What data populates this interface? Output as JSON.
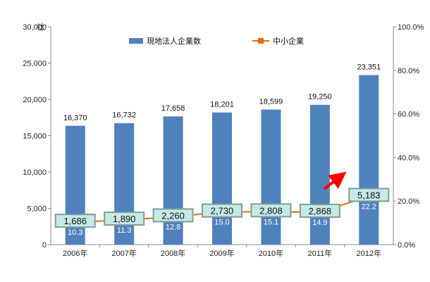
{
  "chart_data": {
    "type": "bar",
    "categories": [
      "2006年",
      "2007年",
      "2008年",
      "2009年",
      "2010年",
      "2011年",
      "2012年"
    ],
    "series": [
      {
        "name": "現地法人企業数",
        "type": "bar",
        "axis": "left",
        "values": [
          16370,
          16732,
          17658,
          18201,
          18599,
          19250,
          23351
        ],
        "labels": [
          "16,370",
          "16,732",
          "17,658",
          "18,201",
          "18,599",
          "19,250",
          "23,351"
        ],
        "color": "#4F81BD"
      },
      {
        "name": "中小企業",
        "type": "line",
        "axis": "right",
        "values": [
          10.3,
          11.3,
          12.8,
          15.0,
          15.1,
          14.9,
          22.2
        ],
        "labels": [
          "10.3",
          "11.3",
          "12.8",
          "15.0",
          "15.1",
          "14.9",
          "22.2"
        ],
        "color": "#E46C0A"
      }
    ],
    "boxed_counts": [
      "1,686",
      "1,890",
      "2,260",
      "2,730",
      "2,808",
      "2,868",
      "5,183"
    ],
    "box_fill": "#C6E9E6",
    "box_border": "#7F9E99",
    "left_axis": {
      "unit": "社",
      "ylim": [
        0,
        30000
      ],
      "ticks": [
        0,
        5000,
        10000,
        15000,
        20000,
        25000,
        30000
      ],
      "tick_labels": [
        "0",
        "5,000",
        "10,000",
        "15,000",
        "20,000",
        "25,000",
        "30,000"
      ]
    },
    "right_axis": {
      "ylim": [
        0,
        100
      ],
      "ticks": [
        0,
        20,
        40,
        60,
        80,
        100
      ],
      "tick_labels": [
        "0.0%",
        "20.0%",
        "40.0%",
        "60.0%",
        "80.0%",
        "100.0%"
      ]
    },
    "annotation": {
      "type": "arrow",
      "color": "#FF0000",
      "points_to": "2012年"
    },
    "legend": {
      "position": "top"
    },
    "grid": false
  }
}
